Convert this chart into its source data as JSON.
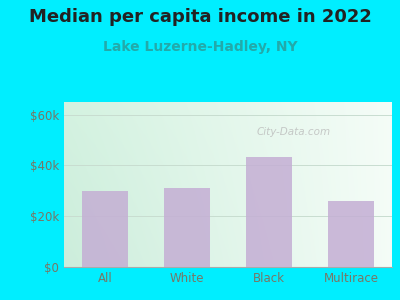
{
  "title": "Median per capita income in 2022",
  "subtitle": "Lake Luzerne-Hadley, NY",
  "categories": [
    "All",
    "White",
    "Black",
    "Multirace"
  ],
  "values": [
    30000,
    31000,
    43500,
    26000
  ],
  "bar_color": "#c4aed4",
  "title_fontsize": 13,
  "subtitle_fontsize": 10,
  "subtitle_color": "#22aaaa",
  "title_color": "#222222",
  "yticks": [
    0,
    20000,
    40000,
    60000
  ],
  "ytick_labels": [
    "$0",
    "$20k",
    "$40k",
    "$60k"
  ],
  "ylim": [
    0,
    65000
  ],
  "bg_outer": "#00eeff",
  "watermark": "City-Data.com",
  "grid_color": "#c8ddd0",
  "tick_color": "#777766",
  "tick_label_fontsize": 8.5
}
